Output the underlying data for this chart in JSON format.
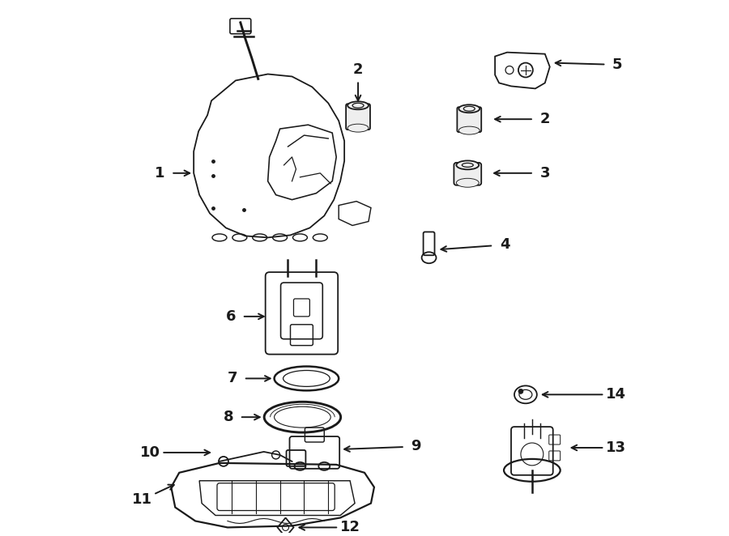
{
  "bg_color": "#ffffff",
  "line_color": "#1a1a1a",
  "lw": 1.3,
  "fig_w": 9.0,
  "fig_h": 6.62,
  "dpi": 100
}
